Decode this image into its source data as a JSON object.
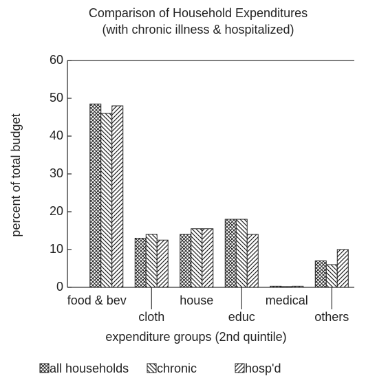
{
  "chart_data": {
    "type": "bar",
    "title": [
      "Comparison of Household Expenditures",
      "(with chronic illness & hospitalized)"
    ],
    "y_label": "percent of total budget",
    "x_label": "expenditure groups (2nd quintile)",
    "categories": [
      "food & bev",
      "cloth",
      "house",
      "educ",
      "medical",
      "others"
    ],
    "series": [
      {
        "name": "all households",
        "color": "#222",
        "pattern": "crosshatch",
        "values": [
          48.5,
          13,
          14,
          18,
          0.3,
          7
        ]
      },
      {
        "name": "chronic",
        "color": "#222",
        "pattern": "backslash",
        "values": [
          46,
          14,
          15.5,
          18,
          0.2,
          6
        ]
      },
      {
        "name": "hosp'd",
        "color": "#222",
        "pattern": "slash",
        "values": [
          48,
          12.5,
          15.5,
          14,
          0.3,
          10
        ]
      }
    ],
    "ylim": [
      0,
      60
    ],
    "yticks": [
      0,
      10,
      20,
      30,
      40,
      50,
      60
    ]
  }
}
